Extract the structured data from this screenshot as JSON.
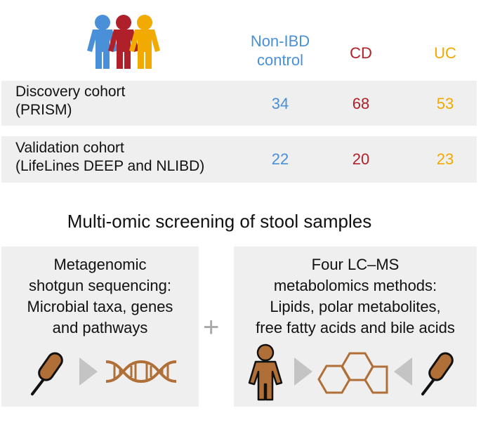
{
  "colors": {
    "non_ibd": "#4a90d9",
    "cd": "#b0202a",
    "uc": "#f2a900",
    "icon_brown": "#b06f37",
    "arrow_gray": "#c4c4c4",
    "panel_bg": "#efefef"
  },
  "header": {
    "non_ibd_label": "Non-IBD\ncontrol",
    "cd_label": "CD",
    "uc_label": "UC"
  },
  "cohorts": [
    {
      "label_line1": "Discovery cohort",
      "label_line2": "(PRISM)",
      "non_ibd": "34",
      "cd": "68",
      "uc": "53"
    },
    {
      "label_line1": "Validation cohort",
      "label_line2": "(LifeLines DEEP and NLIBD)",
      "non_ibd": "22",
      "cd": "20",
      "uc": "23"
    }
  ],
  "section_title": "Multi-omic screening of stool samples",
  "panels": {
    "metagenomic": {
      "line1": "Metagenomic",
      "line2": "shotgun sequencing:",
      "line3": "Microbial taxa, genes",
      "line4": "and pathways"
    },
    "plus": "+",
    "metabolomic": {
      "line1": "Four LC–MS",
      "line2": "metabolomics methods:",
      "line3": "Lipids, polar metabolites,",
      "line4": "free fatty acids and bile acids"
    }
  },
  "icons": [
    "people-group-icon",
    "swab-icon",
    "dna-icon",
    "person-icon",
    "hexagon-molecule-icon",
    "arrow-right-icon",
    "arrow-left-icon"
  ]
}
